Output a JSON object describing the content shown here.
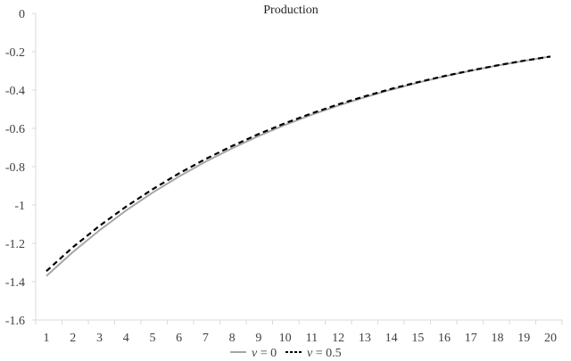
{
  "chart_data": {
    "type": "line",
    "title": "Production",
    "xlabel": "",
    "ylabel": "",
    "x": [
      1,
      2,
      3,
      4,
      5,
      6,
      7,
      8,
      9,
      10,
      11,
      12,
      13,
      14,
      15,
      16,
      17,
      18,
      19,
      20
    ],
    "ylim": [
      -1.6,
      0
    ],
    "yticks": [
      0,
      -0.2,
      -0.4,
      -0.6,
      -0.8,
      -1,
      -1.2,
      -1.4,
      -1.6
    ],
    "ytick_labels": [
      "0",
      "-0.2",
      "-0.4",
      "-0.6",
      "-0.8",
      "-1",
      "-1.2",
      "-1.4",
      "-1.6"
    ],
    "xtick_labels": [
      "1",
      "2",
      "3",
      "4",
      "5",
      "6",
      "7",
      "8",
      "9",
      "10",
      "11",
      "12",
      "13",
      "14",
      "15",
      "16",
      "17",
      "18",
      "19",
      "20"
    ],
    "grid": false,
    "legend_position": "bottom",
    "series": [
      {
        "name": "v = 0",
        "color": "#a6a6a6",
        "style": "solid",
        "values": [
          -1.37,
          -1.245,
          -1.132,
          -1.029,
          -0.936,
          -0.851,
          -0.774,
          -0.704,
          -0.64,
          -0.582,
          -0.529,
          -0.481,
          -0.438,
          -0.398,
          -0.362,
          -0.329,
          -0.299,
          -0.272,
          -0.248,
          -0.225
        ]
      },
      {
        "name": "v = 0.5",
        "color": "#000000",
        "style": "dashed",
        "values": [
          -1.345,
          -1.22,
          -1.109,
          -1.009,
          -0.918,
          -0.835,
          -0.76,
          -0.692,
          -0.63,
          -0.573,
          -0.522,
          -0.475,
          -0.433,
          -0.394,
          -0.359,
          -0.327,
          -0.298,
          -0.271,
          -0.247,
          -0.225
        ]
      }
    ]
  }
}
